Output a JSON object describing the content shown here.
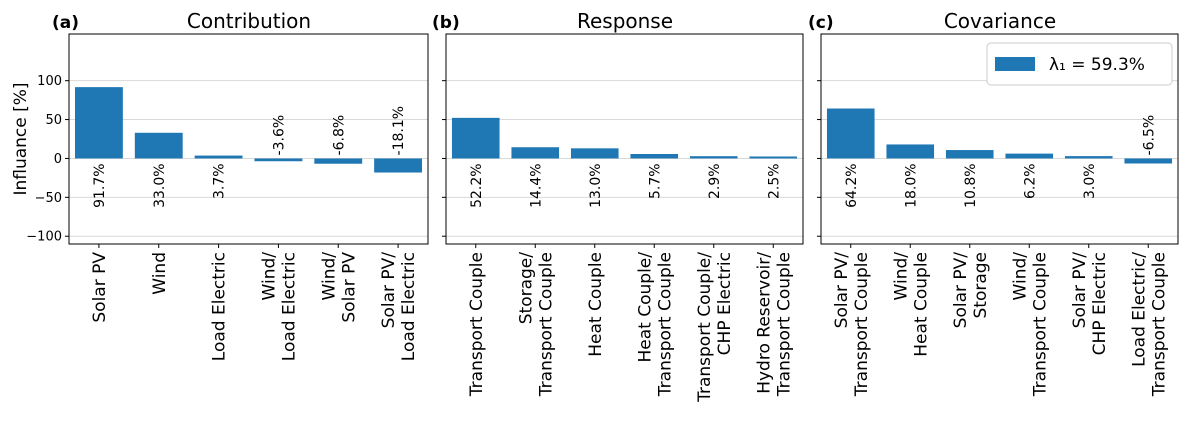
{
  "figure": {
    "ylabel": "Influance [%]",
    "yticks": [
      "100",
      "50",
      "0",
      "−50",
      "−100"
    ],
    "legend": {
      "label": "λ₁ = 59.3%",
      "color": "#1f77b4"
    }
  },
  "chart_data": [
    {
      "type": "bar",
      "panel": "(a)",
      "title": "Contribution",
      "ylim": [
        -110,
        160
      ],
      "yticks": [
        -100,
        -50,
        0,
        50,
        100
      ],
      "grid": true,
      "color": "#1f77b4",
      "categories": [
        "Solar PV",
        "Wind",
        "Load Electric",
        "Wind/ Load Electric",
        "Wind/ Solar PV",
        "Solar PV/ Load Electric"
      ],
      "values": [
        91.7,
        33.0,
        3.7,
        -3.6,
        -6.8,
        -18.1
      ],
      "labels": [
        "91.7%",
        "33.0%",
        "3.7%",
        "-3.6%",
        "-6.8%",
        "-18.1%"
      ]
    },
    {
      "type": "bar",
      "panel": "(b)",
      "title": "Response",
      "ylim": [
        -110,
        160
      ],
      "yticks": [
        -100,
        -50,
        0,
        50,
        100
      ],
      "grid": true,
      "color": "#1f77b4",
      "categories": [
        "Transport Couple",
        "Storage/ Transport Couple",
        "Heat Couple",
        "Heat Couple/ Transport Couple",
        "Transport Couple/ CHP Electric",
        "Hydro Reservoir/ Transport Couple"
      ],
      "values": [
        52.2,
        14.4,
        13.0,
        5.7,
        2.9,
        2.5
      ],
      "labels": [
        "52.2%",
        "14.4%",
        "13.0%",
        "5.7%",
        "2.9%",
        "2.5%"
      ]
    },
    {
      "type": "bar",
      "panel": "(c)",
      "title": "Covariance",
      "ylim": [
        -110,
        160
      ],
      "yticks": [
        -100,
        -50,
        0,
        50,
        100
      ],
      "grid": true,
      "legend": "top-right",
      "color": "#1f77b4",
      "categories": [
        "Solar PV/ Transport Couple",
        "Wind/ Heat Couple",
        "Solar PV/ Storage",
        "Wind/ Transport Couple",
        "Solar PV/ CHP Electric",
        "Load Electric/ Transport Couple"
      ],
      "values": [
        64.2,
        18.0,
        10.8,
        6.2,
        3.0,
        -6.5
      ],
      "labels": [
        "64.2%",
        "18.0%",
        "10.8%",
        "6.2%",
        "3.0%",
        "-6.5%"
      ]
    }
  ]
}
